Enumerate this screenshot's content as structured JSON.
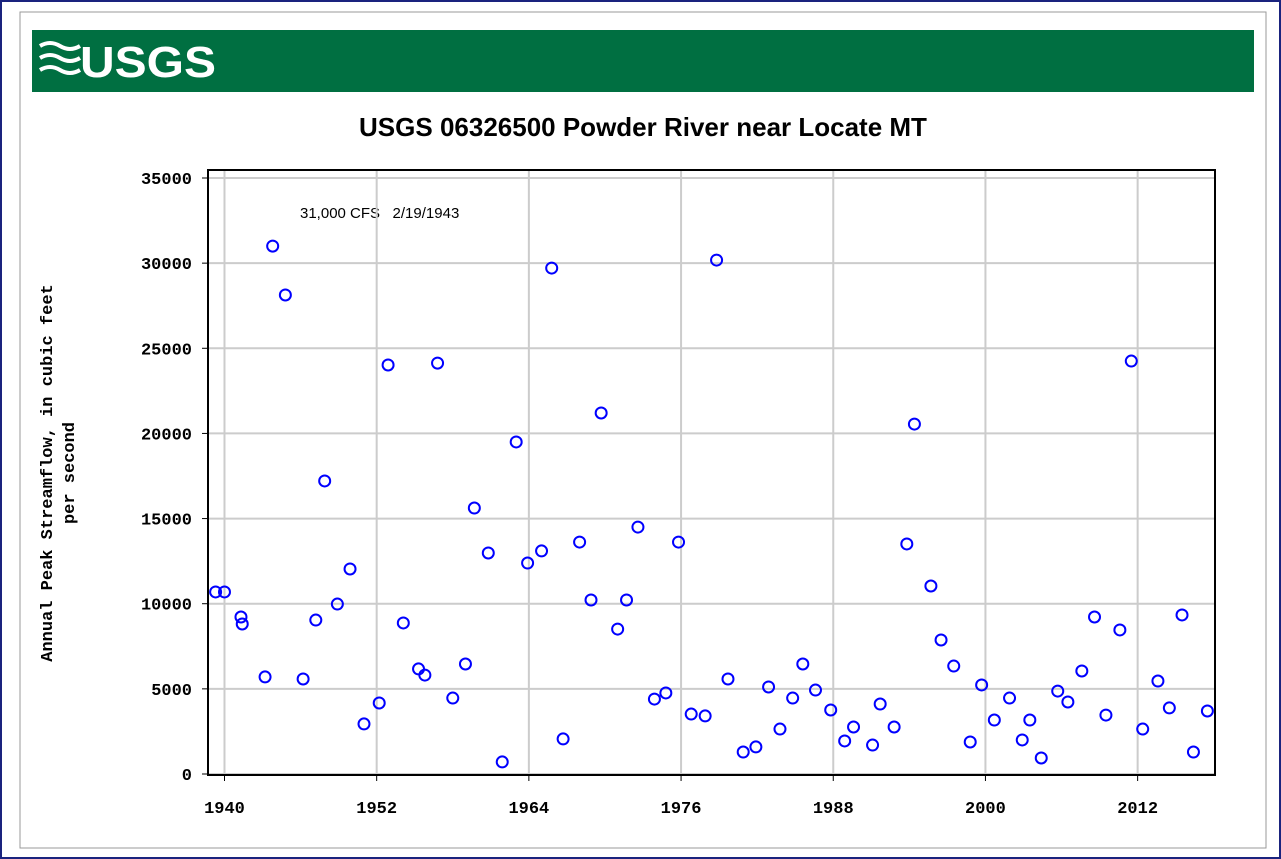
{
  "logo": "USGS",
  "chart_data": {
    "type": "scatter",
    "title": "USGS 06326500 Powder River near Locate MT",
    "ylabel": [
      "Annual Peak Streamflow, in cubic feet",
      "per second"
    ],
    "annotation": "31,000 CFS   2/19/1943",
    "color": "#0000ff",
    "grid": true,
    "xlim": [
      1938.7,
      2018.1
    ],
    "ylim": [
      0,
      35000
    ],
    "xticks": [
      1940,
      1952,
      1964,
      1976,
      1988,
      2000,
      2012
    ],
    "yticks": [
      0,
      5000,
      10000,
      15000,
      20000,
      25000,
      30000,
      35000
    ],
    "x": [
      1939.3,
      1940.0,
      1941.3,
      1941.4,
      1943.2,
      1943.8,
      1944.8,
      1946.2,
      1947.2,
      1947.9,
      1948.9,
      1949.9,
      1951.0,
      1952.2,
      1952.9,
      1954.1,
      1955.3,
      1955.8,
      1956.8,
      1958.0,
      1959.0,
      1959.7,
      1960.8,
      1961.9,
      1963.0,
      1963.9,
      1965.0,
      1965.8,
      1966.7,
      1968.0,
      1968.9,
      1969.7,
      1971.0,
      1971.7,
      1972.6,
      1973.9,
      1974.8,
      1975.8,
      1976.8,
      1977.9,
      1978.8,
      1979.7,
      1980.9,
      1981.9,
      1982.9,
      1983.8,
      1984.8,
      1985.6,
      1986.6,
      1987.8,
      1988.9,
      1989.6,
      1991.1,
      1991.7,
      1992.8,
      1993.8,
      1994.4,
      1995.7,
      1996.5,
      1997.5,
      1998.8,
      1999.7,
      2000.7,
      2001.9,
      2002.9,
      2003.5,
      2004.4,
      2005.7,
      2006.5,
      2007.6,
      2008.6,
      2009.5,
      2010.6,
      2011.5,
      2012.4,
      2013.6,
      2014.5,
      2015.5,
      2016.4,
      2017.5
    ],
    "values": [
      10690,
      10690,
      9220,
      8810,
      5700,
      31000,
      28130,
      5580,
      9040,
      17210,
      9980,
      12040,
      2940,
      4170,
      24020,
      8870,
      6170,
      5810,
      24130,
      4460,
      6460,
      15620,
      12980,
      710,
      19500,
      12390,
      13100,
      29710,
      2060,
      13620,
      10220,
      21200,
      8510,
      10220,
      14500,
      4400,
      4760,
      13620,
      3520,
      3410,
      30180,
      5580,
      1290,
      1590,
      5110,
      2640,
      4460,
      6460,
      4930,
      3760,
      1940,
      2760,
      1700,
      4110,
      2760,
      13510,
      20550,
      11040,
      7870,
      6340,
      1880,
      5230,
      3170,
      4460,
      2000,
      3170,
      940,
      4870,
      4230,
      6050,
      9220,
      3460,
      8460,
      24250,
      2640,
      5460,
      3880,
      9340,
      1290,
      3700
    ]
  }
}
